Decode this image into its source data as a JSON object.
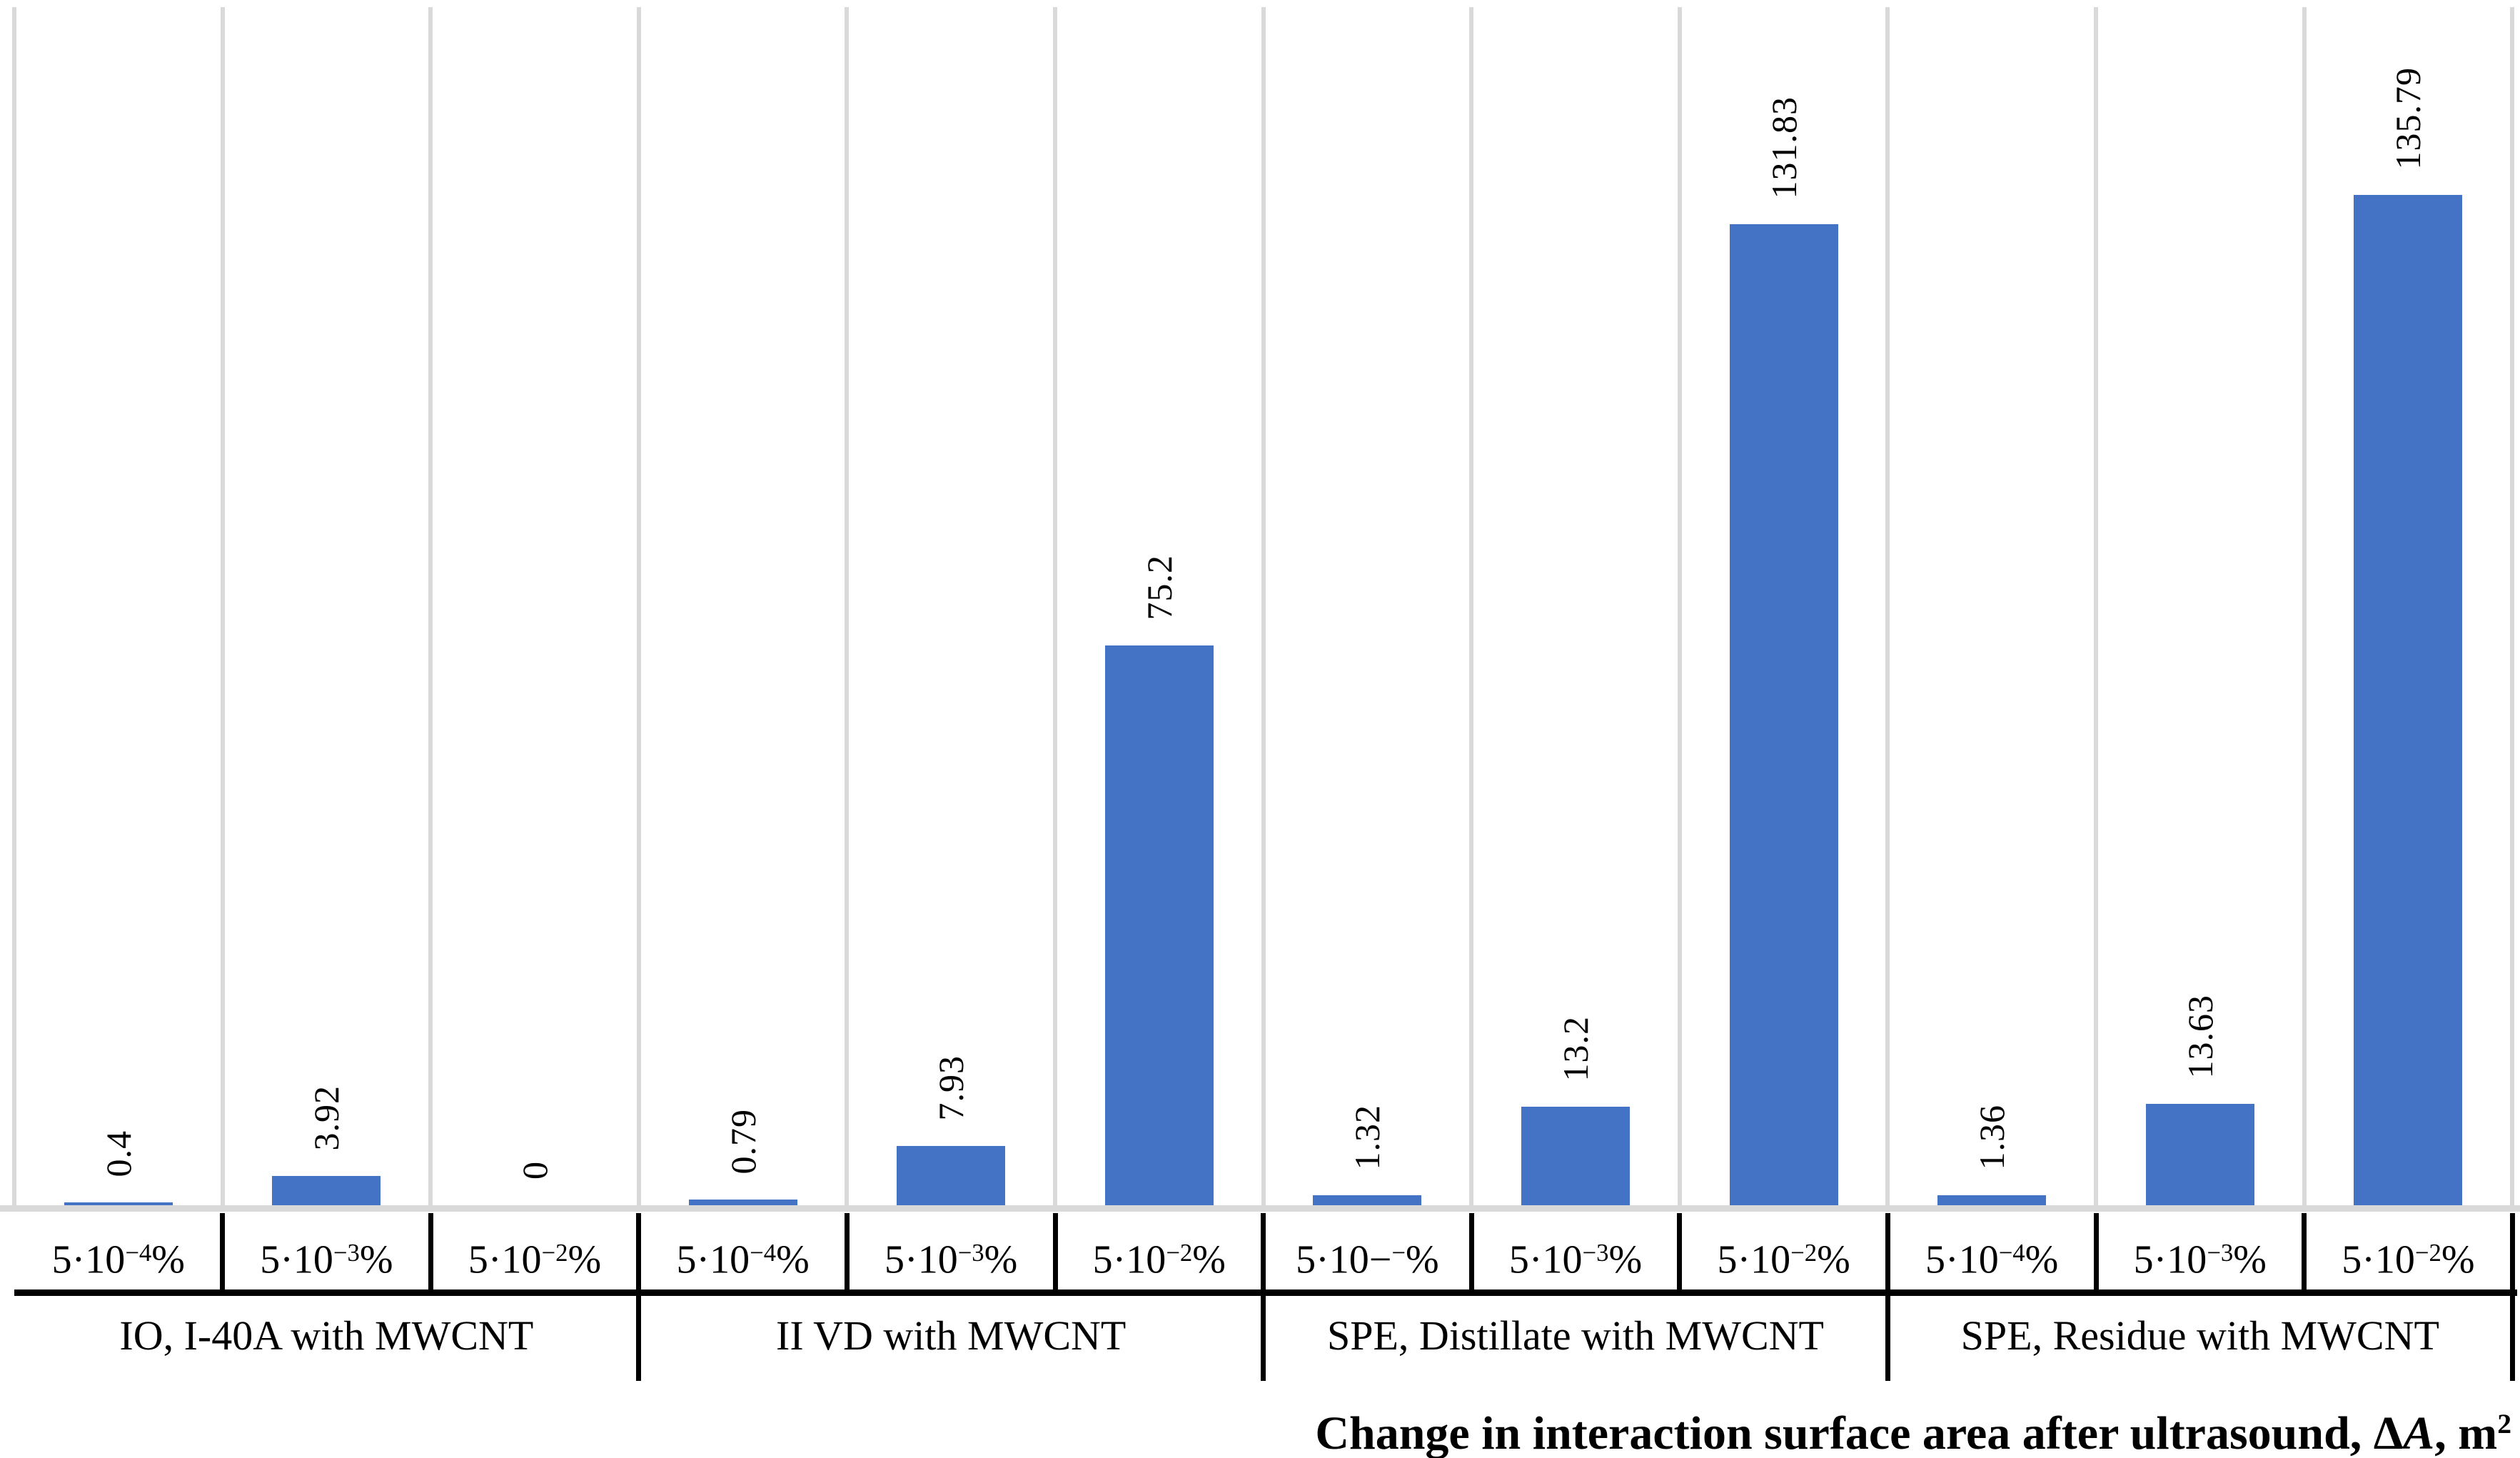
{
  "chart_data": {
    "type": "bar",
    "title": "",
    "xlabel_text": "Change in interaction surface area after ultrasound, ΔA, m²",
    "xlabel_parts": {
      "pre": "Change in interaction surface area after ultrasound, ",
      "delta": "Δ",
      "var": "A",
      "post": ", m",
      "sup": "2"
    },
    "ylabel": "",
    "ylim": [
      0,
      162
    ],
    "grid": "vertical-category-separators-only",
    "legend": "none",
    "bar_color": "#4472C4",
    "gridline_color": "#D9D9D9",
    "baseline_color": "#D9D9D9",
    "separator_color": "#000000",
    "groups": [
      {
        "label": "IO, I-40A with MWCNT",
        "categories": [
          {
            "name": "5·10⁻⁴%",
            "tick_parts": [
              {
                "t": "5·10",
                "sup": false
              },
              {
                "t": "−4",
                "sup": true
              },
              {
                "t": "%",
                "sup": false
              }
            ],
            "value": 0.4,
            "label": "0.4"
          },
          {
            "name": "5·10⁻³%",
            "tick_parts": [
              {
                "t": "5·10",
                "sup": false
              },
              {
                "t": "−3",
                "sup": true
              },
              {
                "t": "%",
                "sup": false
              }
            ],
            "value": 3.92,
            "label": "3.92"
          },
          {
            "name": "5·10⁻²%",
            "tick_parts": [
              {
                "t": "5·10",
                "sup": false
              },
              {
                "t": "−2",
                "sup": true
              },
              {
                "t": "%",
                "sup": false
              }
            ],
            "value": 0,
            "label": "0"
          }
        ]
      },
      {
        "label": "II VD with MWCNT",
        "categories": [
          {
            "name": "5·10⁻⁴%",
            "tick_parts": [
              {
                "t": "5·10",
                "sup": false
              },
              {
                "t": "−4",
                "sup": true
              },
              {
                "t": "%",
                "sup": false
              }
            ],
            "value": 0.79,
            "label": "0.79"
          },
          {
            "name": "5·10⁻³%",
            "tick_parts": [
              {
                "t": "5·10",
                "sup": false
              },
              {
                "t": "−3",
                "sup": true
              },
              {
                "t": "%",
                "sup": false
              }
            ],
            "value": 7.93,
            "label": "7.93"
          },
          {
            "name": "5·10⁻²%",
            "tick_parts": [
              {
                "t": "5·10",
                "sup": false
              },
              {
                "t": "−2",
                "sup": true
              },
              {
                "t": "%",
                "sup": false
              }
            ],
            "value": 75.2,
            "label": "75.2"
          }
        ]
      },
      {
        "label": "SPE, Distillate with MWCNT",
        "categories": [
          {
            "name": "5·10⁻⁻%",
            "tick_parts": [
              {
                "t": "5·10−",
                "sup": false
              },
              {
                "t": "−",
                "sup": true
              },
              {
                "t": "%",
                "sup": false
              }
            ],
            "value": 1.32,
            "label": "1.32"
          },
          {
            "name": "5·10⁻³%",
            "tick_parts": [
              {
                "t": "5·10",
                "sup": false
              },
              {
                "t": "−3",
                "sup": true
              },
              {
                "t": "%",
                "sup": false
              }
            ],
            "value": 13.2,
            "label": "13.2"
          },
          {
            "name": "5·10⁻²%",
            "tick_parts": [
              {
                "t": "5·10",
                "sup": false
              },
              {
                "t": "−2",
                "sup": true
              },
              {
                "t": "%",
                "sup": false
              }
            ],
            "value": 131.83,
            "label": "131.83"
          }
        ]
      },
      {
        "label": "SPE, Residue with MWCNT",
        "categories": [
          {
            "name": "5·10⁻⁴%",
            "tick_parts": [
              {
                "t": "5·10",
                "sup": false
              },
              {
                "t": "−4",
                "sup": true
              },
              {
                "t": "%",
                "sup": false
              }
            ],
            "value": 1.36,
            "label": "1.36"
          },
          {
            "name": "5·10⁻³%",
            "tick_parts": [
              {
                "t": "5·10",
                "sup": false
              },
              {
                "t": "−3",
                "sup": true
              },
              {
                "t": "%",
                "sup": false
              }
            ],
            "value": 13.63,
            "label": "13.63"
          },
          {
            "name": "5·10⁻²%",
            "tick_parts": [
              {
                "t": "5·10",
                "sup": false
              },
              {
                "t": "−2",
                "sup": true
              },
              {
                "t": "%",
                "sup": false
              }
            ],
            "value": 135.79,
            "label": "135.79"
          }
        ]
      }
    ]
  }
}
